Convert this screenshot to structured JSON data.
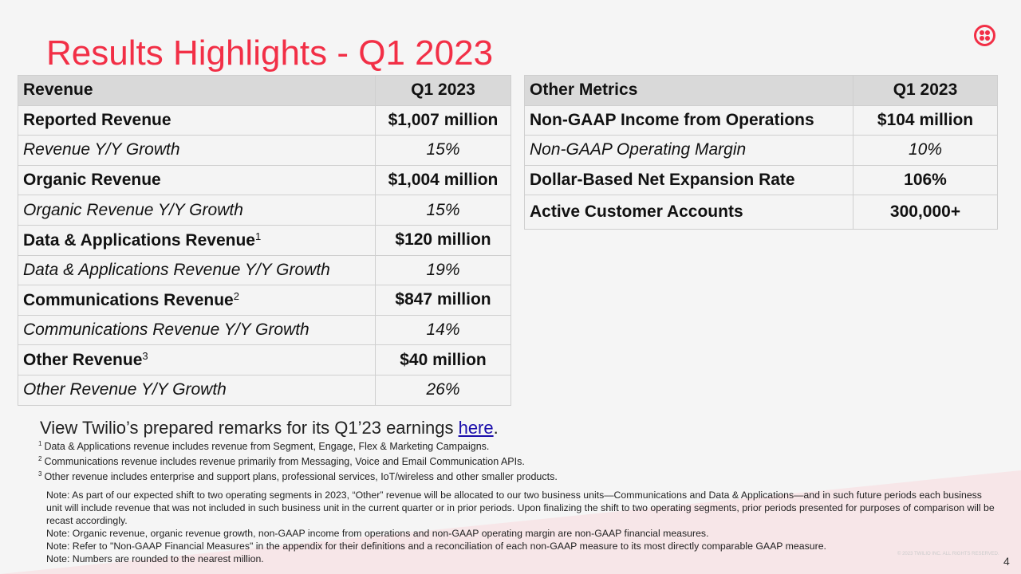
{
  "title": "Results Highlights - Q1 2023",
  "logo": "twilio-logo",
  "colors": {
    "accent": "#f22f46",
    "header_bg": "#d9d9d9"
  },
  "revenue_table": {
    "headers": [
      "Revenue",
      "Q1 2023"
    ],
    "rows": [
      {
        "label": "Reported Revenue",
        "value": "$1,007 million",
        "sup": ""
      },
      {
        "label": "Revenue Y/Y Growth",
        "value": "15%",
        "sup": ""
      },
      {
        "label": "Organic Revenue",
        "value": "$1,004 million",
        "sup": ""
      },
      {
        "label": "Organic Revenue Y/Y Growth",
        "value": "15%",
        "sup": ""
      },
      {
        "label": "Data & Applications Revenue",
        "value": "$120 million",
        "sup": "1"
      },
      {
        "label": "Data & Applications Revenue Y/Y Growth",
        "value": "19%",
        "sup": ""
      },
      {
        "label": "Communications Revenue",
        "value": "$847 million",
        "sup": "2"
      },
      {
        "label": "Communications Revenue Y/Y Growth",
        "value": "14%",
        "sup": ""
      },
      {
        "label": "Other Revenue",
        "value": "$40 million",
        "sup": "3"
      },
      {
        "label": "Other Revenue Y/Y Growth",
        "value": "26%",
        "sup": ""
      }
    ]
  },
  "metrics_table": {
    "headers": [
      "Other Metrics",
      "Q1 2023"
    ],
    "rows": [
      {
        "label": "Non-GAAP Income from Operations",
        "value": "$104 million"
      },
      {
        "label": "Non-GAAP Operating Margin",
        "value": "10%"
      },
      {
        "label": "Dollar-Based Net Expansion Rate",
        "value": "106%"
      },
      {
        "label": "Active Customer Accounts",
        "value": "300,000+"
      }
    ]
  },
  "remarks": {
    "text": "View Twilio’s prepared remarks for its Q1’23 earnings ",
    "link": "here",
    "end": "."
  },
  "footnotes": [
    {
      "num": "1",
      "text": "Data & Applications revenue includes revenue from Segment, Engage, Flex & Marketing Campaigns."
    },
    {
      "num": "2",
      "text": "Communications revenue includes revenue primarily from Messaging, Voice and Email Communication APIs."
    },
    {
      "num": "3",
      "text": "Other revenue includes enterprise and support plans, professional services, IoT/wireless and other smaller products."
    }
  ],
  "notes": [
    "Note: As part of our expected shift to two operating segments in 2023, “Other” revenue will be allocated to our two business units—Communications and Data & Applications—and in such future periods each business unit will include revenue that was not included in such business unit in the current quarter or in prior periods. Upon finalizing the shift to two operating segments, prior periods presented for purposes of comparison will be recast accordingly.",
    "Note: Organic revenue, organic revenue growth, non-GAAP income from operations and non-GAAP operating margin are non-GAAP financial measures.",
    "Note: Refer to \"Non-GAAP Financial Measures\" in the appendix for their definitions and a reconciliation of each non-GAAP measure to its most directly comparable GAAP measure.",
    "Note: Numbers are rounded to the nearest million."
  ],
  "copyright": "© 2023 TWILIO INC. ALL RIGHTS RESERVED.",
  "page_number": "4"
}
